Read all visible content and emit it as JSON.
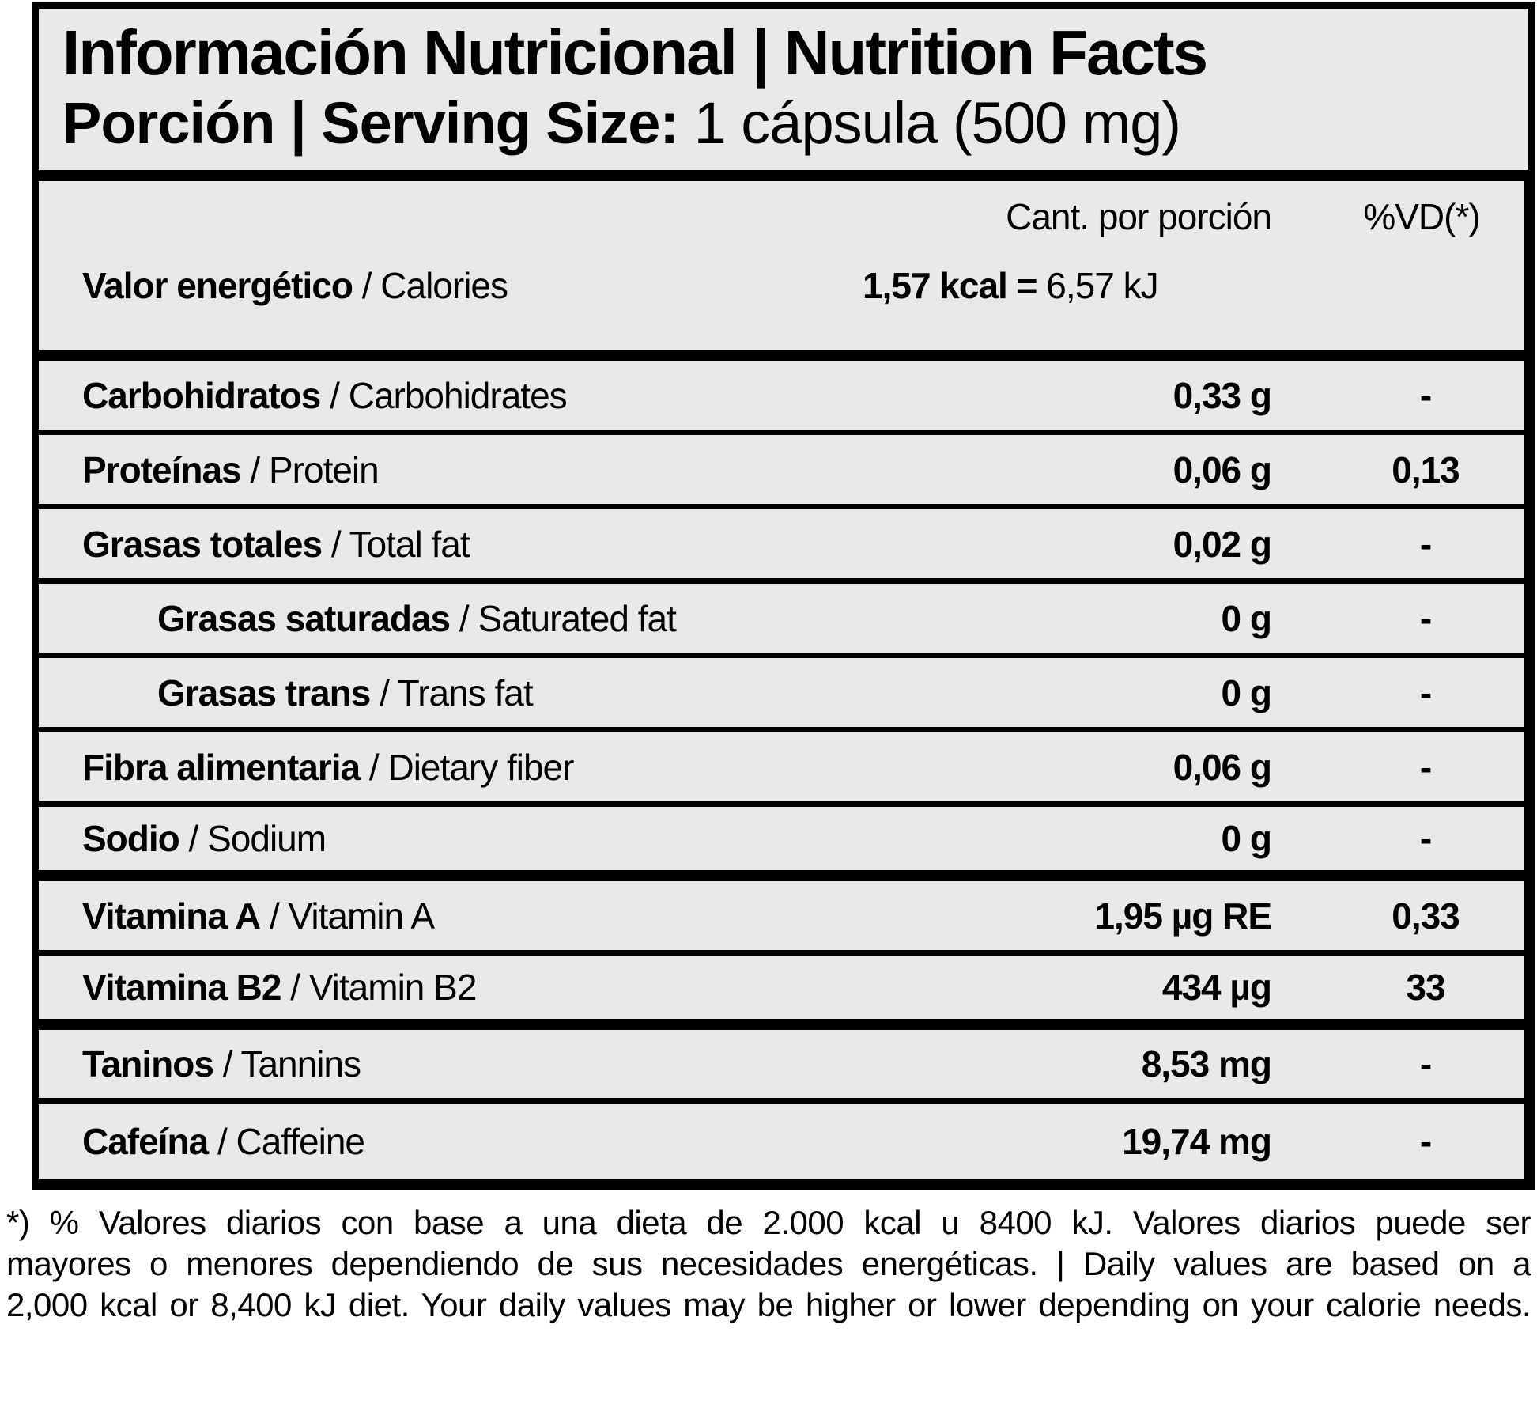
{
  "colors": {
    "panel_background": "#e9e9e9",
    "border": "#000000",
    "text": "#000000",
    "page_background": "#ffffff"
  },
  "header": {
    "title": "Información Nutricional | Nutrition Facts",
    "serving_label": "Porción | Serving Size:",
    "serving_value": "1 cápsula (500 mg)"
  },
  "table": {
    "sep": "/",
    "col_amount": "Cant. por porción",
    "col_dv": "%VD(*)",
    "energy": {
      "name_es": "Valor energético",
      "name_en": "Calories",
      "value_bold": "1,57 kcal =",
      "value_rest": "6,57 kJ"
    },
    "rows": [
      {
        "name_es": "Carbohidratos",
        "name_en": "Carbohidrates",
        "amount": "0,33 g",
        "dv": "-"
      },
      {
        "name_es": "Proteínas",
        "name_en": "Protein",
        "amount": "0,06 g",
        "dv": "0,13"
      },
      {
        "name_es": "Grasas totales",
        "name_en": "Total fat",
        "amount": "0,02 g",
        "dv": "-"
      },
      {
        "name_es": "Grasas saturadas",
        "name_en": "Saturated fat",
        "amount": "0 g",
        "dv": "-"
      },
      {
        "name_es": "Grasas trans",
        "name_en": "Trans fat",
        "amount": "0 g",
        "dv": "-"
      },
      {
        "name_es": "Fibra alimentaria",
        "name_en": "Dietary fiber",
        "amount": "0,06 g",
        "dv": "-"
      },
      {
        "name_es": "Sodio",
        "name_en": "Sodium",
        "amount": "0 g",
        "dv": "-"
      },
      {
        "name_es": "Vitamina A",
        "name_en": "Vitamin A",
        "amount": "1,95 µg RE",
        "dv": "0,33"
      },
      {
        "name_es": "Vitamina B2",
        "name_en": "Vitamin B2",
        "amount": "434 µg",
        "dv": "33"
      },
      {
        "name_es": "Taninos",
        "name_en": "Tannins",
        "amount": "8,53 mg",
        "dv": "-"
      },
      {
        "name_es": "Cafeína",
        "name_en": "Caffeine",
        "amount": "19,74 mg",
        "dv": "-"
      }
    ]
  },
  "footnote": {
    "lines": [
      "*) % Valores diarios con base a una dieta de 2.000 kcal u 8400 kJ. Valores diarios puede ser",
      "mayores o menores dependiendo de sus necesidades energéticas. | Daily values are based on a",
      "2,000 kcal or 8,400 kJ diet. Your daily values may be higher or lower depending on your calorie needs."
    ]
  }
}
